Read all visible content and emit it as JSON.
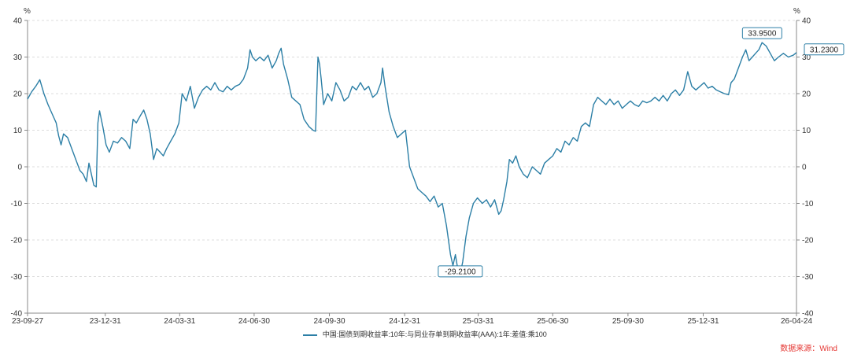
{
  "chart_data": {
    "type": "line",
    "xlabels": [
      "23-09-27",
      "23-12-31",
      "24-03-31",
      "24-06-30",
      "24-09-30",
      "24-12-31",
      "25-03-31",
      "25-06-30",
      "25-09-30",
      "25-12-31",
      "26-04-24"
    ],
    "x_start": "2023-09-27",
    "x_end": "2026-04-24",
    "ylim": [
      -40,
      40
    ],
    "yticks": [
      40,
      30,
      20,
      10,
      0,
      -10,
      -20,
      -30,
      -40
    ],
    "y_unit_left": "%",
    "y_unit_right": "%",
    "grid": "horizontal-dashed",
    "legend_position": "bottom",
    "series": [
      {
        "name": "中国:国债到期收益率:10年:与同业存单到期收益率(AAA):1年:差值:乘100",
        "color": "#2c7fa6",
        "points": [
          [
            "2023-09-27",
            18.5
          ],
          [
            "2023-10-02",
            20.5
          ],
          [
            "2023-10-07",
            22
          ],
          [
            "2023-10-12",
            23.8
          ],
          [
            "2023-10-17",
            20
          ],
          [
            "2023-10-22",
            17
          ],
          [
            "2023-10-25",
            15.5
          ],
          [
            "2023-10-28",
            14
          ],
          [
            "2023-11-01",
            12
          ],
          [
            "2023-11-04",
            8.5
          ],
          [
            "2023-11-07",
            6
          ],
          [
            "2023-11-10",
            9
          ],
          [
            "2023-11-15",
            8
          ],
          [
            "2023-11-20",
            5
          ],
          [
            "2023-11-25",
            2
          ],
          [
            "2023-11-30",
            -1
          ],
          [
            "2023-12-04",
            -2
          ],
          [
            "2023-12-08",
            -4
          ],
          [
            "2023-12-11",
            1
          ],
          [
            "2023-12-14",
            -2
          ],
          [
            "2023-12-17",
            -5
          ],
          [
            "2023-12-20",
            -5.5
          ],
          [
            "2023-12-22",
            12
          ],
          [
            "2023-12-24",
            15.3
          ],
          [
            "2023-12-28",
            11
          ],
          [
            "2024-01-01",
            6
          ],
          [
            "2024-01-05",
            4
          ],
          [
            "2024-01-10",
            7
          ],
          [
            "2024-01-15",
            6.5
          ],
          [
            "2024-01-20",
            8
          ],
          [
            "2024-01-25",
            7
          ],
          [
            "2024-01-30",
            5
          ],
          [
            "2024-02-03",
            13
          ],
          [
            "2024-02-07",
            12
          ],
          [
            "2024-02-12",
            14
          ],
          [
            "2024-02-16",
            15.5
          ],
          [
            "2024-02-20",
            13
          ],
          [
            "2024-02-24",
            9
          ],
          [
            "2024-02-28",
            2
          ],
          [
            "2024-03-03",
            5
          ],
          [
            "2024-03-07",
            4
          ],
          [
            "2024-03-11",
            3
          ],
          [
            "2024-03-15",
            5
          ],
          [
            "2024-03-20",
            7
          ],
          [
            "2024-03-25",
            9
          ],
          [
            "2024-03-30",
            12
          ],
          [
            "2024-04-03",
            20
          ],
          [
            "2024-04-08",
            18
          ],
          [
            "2024-04-13",
            22
          ],
          [
            "2024-04-18",
            16
          ],
          [
            "2024-04-23",
            19
          ],
          [
            "2024-04-28",
            21
          ],
          [
            "2024-05-03",
            22
          ],
          [
            "2024-05-08",
            21
          ],
          [
            "2024-05-13",
            23
          ],
          [
            "2024-05-18",
            21
          ],
          [
            "2024-05-23",
            20.5
          ],
          [
            "2024-05-28",
            22
          ],
          [
            "2024-06-02",
            21
          ],
          [
            "2024-06-07",
            22
          ],
          [
            "2024-06-12",
            22.5
          ],
          [
            "2024-06-17",
            24
          ],
          [
            "2024-06-22",
            27
          ],
          [
            "2024-06-25",
            32
          ],
          [
            "2024-06-28",
            30
          ],
          [
            "2024-07-02",
            29
          ],
          [
            "2024-07-07",
            30
          ],
          [
            "2024-07-12",
            29
          ],
          [
            "2024-07-17",
            30.5
          ],
          [
            "2024-07-22",
            27
          ],
          [
            "2024-07-27",
            29
          ],
          [
            "2024-07-30",
            31
          ],
          [
            "2024-08-02",
            32.4
          ],
          [
            "2024-08-05",
            28
          ],
          [
            "2024-08-10",
            24
          ],
          [
            "2024-08-15",
            19
          ],
          [
            "2024-08-20",
            18
          ],
          [
            "2024-08-25",
            17
          ],
          [
            "2024-08-30",
            13
          ],
          [
            "2024-09-05",
            11
          ],
          [
            "2024-09-10",
            10
          ],
          [
            "2024-09-13",
            9.7
          ],
          [
            "2024-09-16",
            30
          ],
          [
            "2024-09-18",
            28
          ],
          [
            "2024-09-20",
            24
          ],
          [
            "2024-09-23",
            17
          ],
          [
            "2024-09-28",
            20
          ],
          [
            "2024-10-03",
            18
          ],
          [
            "2024-10-08",
            23
          ],
          [
            "2024-10-13",
            21
          ],
          [
            "2024-10-18",
            18
          ],
          [
            "2024-10-23",
            19
          ],
          [
            "2024-10-28",
            22
          ],
          [
            "2024-11-02",
            21
          ],
          [
            "2024-11-07",
            23
          ],
          [
            "2024-11-12",
            21
          ],
          [
            "2024-11-17",
            22
          ],
          [
            "2024-11-22",
            19
          ],
          [
            "2024-11-27",
            20
          ],
          [
            "2024-12-02",
            23
          ],
          [
            "2024-12-04",
            27
          ],
          [
            "2024-12-07",
            22
          ],
          [
            "2024-12-12",
            15
          ],
          [
            "2024-12-17",
            11
          ],
          [
            "2024-12-22",
            8
          ],
          [
            "2024-12-27",
            9
          ],
          [
            "2025-01-01",
            10
          ],
          [
            "2025-01-06",
            0
          ],
          [
            "2025-01-11",
            -3
          ],
          [
            "2025-01-16",
            -6
          ],
          [
            "2025-01-21",
            -7
          ],
          [
            "2025-01-26",
            -8
          ],
          [
            "2025-01-31",
            -9.5
          ],
          [
            "2025-02-05",
            -8
          ],
          [
            "2025-02-10",
            -11
          ],
          [
            "2025-02-15",
            -10
          ],
          [
            "2025-02-20",
            -16
          ],
          [
            "2025-02-25",
            -24
          ],
          [
            "2025-02-28",
            -27
          ],
          [
            "2025-03-03",
            -24
          ],
          [
            "2025-03-06",
            -28
          ],
          [
            "2025-03-09",
            -29.21
          ],
          [
            "2025-03-12",
            -26
          ],
          [
            "2025-03-16",
            -19
          ],
          [
            "2025-03-20",
            -14
          ],
          [
            "2025-03-25",
            -10
          ],
          [
            "2025-03-30",
            -8.5
          ],
          [
            "2025-04-05",
            -10
          ],
          [
            "2025-04-10",
            -9
          ],
          [
            "2025-04-15",
            -11
          ],
          [
            "2025-04-20",
            -9
          ],
          [
            "2025-04-25",
            -13
          ],
          [
            "2025-04-28",
            -12
          ],
          [
            "2025-05-01",
            -9
          ],
          [
            "2025-05-05",
            -4
          ],
          [
            "2025-05-08",
            2
          ],
          [
            "2025-05-12",
            1
          ],
          [
            "2025-05-16",
            3
          ],
          [
            "2025-05-20",
            0
          ],
          [
            "2025-05-25",
            -2
          ],
          [
            "2025-05-30",
            -3
          ],
          [
            "2025-06-05",
            0
          ],
          [
            "2025-06-10",
            -1
          ],
          [
            "2025-06-15",
            -2
          ],
          [
            "2025-06-20",
            1
          ],
          [
            "2025-06-25",
            2
          ],
          [
            "2025-06-30",
            3
          ],
          [
            "2025-07-05",
            5
          ],
          [
            "2025-07-10",
            4
          ],
          [
            "2025-07-15",
            7
          ],
          [
            "2025-07-20",
            6
          ],
          [
            "2025-07-25",
            8
          ],
          [
            "2025-07-30",
            7
          ],
          [
            "2025-08-04",
            11
          ],
          [
            "2025-08-09",
            12
          ],
          [
            "2025-08-14",
            11
          ],
          [
            "2025-08-19",
            17
          ],
          [
            "2025-08-24",
            19
          ],
          [
            "2025-08-29",
            18
          ],
          [
            "2025-09-03",
            17
          ],
          [
            "2025-09-08",
            18.5
          ],
          [
            "2025-09-13",
            17
          ],
          [
            "2025-09-18",
            18
          ],
          [
            "2025-09-23",
            16
          ],
          [
            "2025-09-28",
            17
          ],
          [
            "2025-10-03",
            18
          ],
          [
            "2025-10-08",
            17
          ],
          [
            "2025-10-13",
            16.5
          ],
          [
            "2025-10-18",
            18
          ],
          [
            "2025-10-23",
            17.5
          ],
          [
            "2025-10-28",
            18
          ],
          [
            "2025-11-02",
            19
          ],
          [
            "2025-11-07",
            18
          ],
          [
            "2025-11-12",
            19.5
          ],
          [
            "2025-11-17",
            18
          ],
          [
            "2025-11-22",
            20
          ],
          [
            "2025-11-27",
            21
          ],
          [
            "2025-12-02",
            19.5
          ],
          [
            "2025-12-07",
            21
          ],
          [
            "2025-12-12",
            26
          ],
          [
            "2025-12-17",
            22
          ],
          [
            "2025-12-22",
            21
          ],
          [
            "2025-12-27",
            22
          ],
          [
            "2026-01-01",
            23
          ],
          [
            "2026-01-06",
            21.5
          ],
          [
            "2026-01-11",
            22
          ],
          [
            "2026-01-16",
            21
          ],
          [
            "2026-01-21",
            20.5
          ],
          [
            "2026-01-26",
            20
          ],
          [
            "2026-01-31",
            19.7
          ],
          [
            "2026-02-03",
            23
          ],
          [
            "2026-02-07",
            24
          ],
          [
            "2026-02-12",
            27
          ],
          [
            "2026-02-17",
            30
          ],
          [
            "2026-02-21",
            32
          ],
          [
            "2026-02-25",
            29
          ],
          [
            "2026-03-01",
            30
          ],
          [
            "2026-03-05",
            31
          ],
          [
            "2026-03-09",
            32
          ],
          [
            "2026-03-13",
            33.95
          ],
          [
            "2026-03-18",
            33
          ],
          [
            "2026-03-23",
            31
          ],
          [
            "2026-03-28",
            29
          ],
          [
            "2026-04-02",
            30
          ],
          [
            "2026-04-08",
            31
          ],
          [
            "2026-04-14",
            30
          ],
          [
            "2026-04-20",
            30.5
          ],
          [
            "2026-04-24",
            31.23
          ]
        ]
      }
    ],
    "annotations": [
      {
        "label": "33.9500",
        "x": "2026-03-13",
        "y": 33.95
      },
      {
        "label": "-29.2100",
        "x": "2025-03-09",
        "y": -29.21
      },
      {
        "label": "31.2300",
        "x": "2026-04-24",
        "y": 31.23
      }
    ]
  },
  "source": "数据来源：Wind"
}
